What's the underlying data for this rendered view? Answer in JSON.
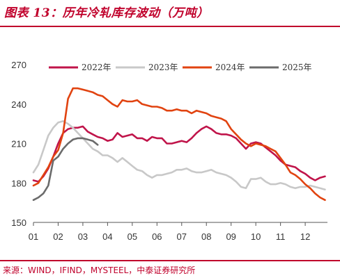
{
  "title": "图表 13：历年冷轧库存波动（万吨）",
  "source": "来源：WIND，IFIND，MYSTEEL，中泰证券研究所",
  "colors": {
    "accent": "#c0002b"
  },
  "chart_data": {
    "type": "line",
    "ylim": [
      150,
      270
    ],
    "yticks": [
      "150",
      "180",
      "210",
      "240",
      "270"
    ],
    "xlim": [
      1,
      12.9
    ],
    "xticks": [
      "01",
      "02",
      "03",
      "04",
      "05",
      "06",
      "07",
      "08",
      "09",
      "10",
      "11",
      "12"
    ],
    "grid": false,
    "legend": "top",
    "series": [
      {
        "name": "2022年",
        "color": "#c0144a",
        "x": [
          1.0,
          1.2,
          1.4,
          1.6,
          1.8,
          2.0,
          2.2,
          2.4,
          2.6,
          2.8,
          3.0,
          3.2,
          3.4,
          3.6,
          3.8,
          4.0,
          4.2,
          4.4,
          4.6,
          4.8,
          5.0,
          5.2,
          5.4,
          5.6,
          5.8,
          6.0,
          6.2,
          6.4,
          6.6,
          6.8,
          7.0,
          7.2,
          7.4,
          7.6,
          7.8,
          8.0,
          8.2,
          8.4,
          8.6,
          8.8,
          9.0,
          9.2,
          9.4,
          9.6,
          9.8,
          10.0,
          10.2,
          10.4,
          10.6,
          10.8,
          11.0,
          11.2,
          11.4,
          11.6,
          11.8,
          12.0,
          12.2,
          12.4,
          12.6,
          12.8
        ],
        "values": [
          182,
          181,
          185,
          191,
          200,
          210,
          218,
          221,
          222,
          222,
          223,
          219,
          217,
          215,
          214,
          212,
          213,
          218,
          215,
          216,
          217,
          214,
          214,
          212,
          215,
          214,
          214,
          210,
          210,
          211,
          212,
          211,
          214,
          218,
          221,
          223,
          221,
          218,
          217,
          217,
          216,
          214,
          210,
          206,
          210,
          211,
          210,
          207,
          204,
          201,
          197,
          194,
          193,
          192,
          189,
          187,
          184,
          182,
          184,
          185
        ]
      },
      {
        "name": "2023年",
        "color": "#c8c8c8",
        "x": [
          1.0,
          1.2,
          1.4,
          1.6,
          1.8,
          2.0,
          2.2,
          2.4,
          2.6,
          2.8,
          3.0,
          3.2,
          3.4,
          3.6,
          3.8,
          4.0,
          4.2,
          4.4,
          4.6,
          4.8,
          5.0,
          5.2,
          5.4,
          5.6,
          5.8,
          6.0,
          6.2,
          6.4,
          6.6,
          6.8,
          7.0,
          7.2,
          7.4,
          7.6,
          7.8,
          8.0,
          8.2,
          8.4,
          8.6,
          8.8,
          9.0,
          9.2,
          9.4,
          9.6,
          9.8,
          10.0,
          10.2,
          10.4,
          10.6,
          10.8,
          11.0,
          11.2,
          11.4,
          11.6,
          11.8,
          12.0,
          12.2,
          12.4,
          12.6,
          12.8
        ],
        "values": [
          188,
          194,
          205,
          216,
          222,
          226,
          227,
          225,
          222,
          218,
          214,
          210,
          206,
          204,
          201,
          201,
          199,
          196,
          199,
          196,
          193,
          190,
          189,
          186,
          184,
          186,
          186,
          187,
          188,
          190,
          190,
          191,
          189,
          188,
          188,
          189,
          190,
          188,
          187,
          186,
          184,
          181,
          177,
          176,
          183,
          183,
          184,
          181,
          179,
          179,
          180,
          179,
          177,
          176,
          177,
          177,
          178,
          177,
          176,
          175
        ]
      },
      {
        "name": "2024年",
        "color": "#e14310",
        "x": [
          1.0,
          1.2,
          1.4,
          1.6,
          1.8,
          2.0,
          2.2,
          2.4,
          2.6,
          2.8,
          3.0,
          3.2,
          3.4,
          3.6,
          3.8,
          4.0,
          4.2,
          4.4,
          4.6,
          4.8,
          5.0,
          5.2,
          5.4,
          5.6,
          5.8,
          6.0,
          6.2,
          6.4,
          6.6,
          6.8,
          7.0,
          7.2,
          7.4,
          7.6,
          7.8,
          8.0,
          8.2,
          8.4,
          8.6,
          8.8,
          9.0,
          9.2,
          9.4,
          9.6,
          9.8,
          10.0,
          10.2,
          10.4,
          10.6,
          10.8,
          11.0,
          11.2,
          11.4,
          11.6,
          11.8,
          12.0,
          12.2,
          12.4,
          12.6,
          12.8
        ],
        "values": [
          178,
          180,
          186,
          192,
          200,
          205,
          218,
          244,
          252,
          252,
          251,
          250,
          249,
          247,
          246,
          243,
          240,
          238,
          243,
          242,
          242,
          243,
          240,
          239,
          238,
          238,
          237,
          235,
          235,
          236,
          235,
          235,
          233,
          235,
          234,
          233,
          231,
          230,
          229,
          227,
          221,
          217,
          213,
          210,
          208,
          210,
          209,
          208,
          206,
          204,
          199,
          194,
          188,
          186,
          183,
          179,
          176,
          172,
          169,
          167
        ]
      },
      {
        "name": "2025年",
        "color": "#6b6b6b",
        "x": [
          1.0,
          1.2,
          1.4,
          1.6,
          1.8,
          2.0,
          2.2,
          2.4,
          2.6,
          2.8,
          3.0,
          3.2,
          3.4,
          3.6
        ],
        "values": [
          167,
          169,
          172,
          178,
          197,
          200,
          206,
          210,
          213,
          214,
          214,
          213,
          212,
          209
        ]
      }
    ]
  }
}
